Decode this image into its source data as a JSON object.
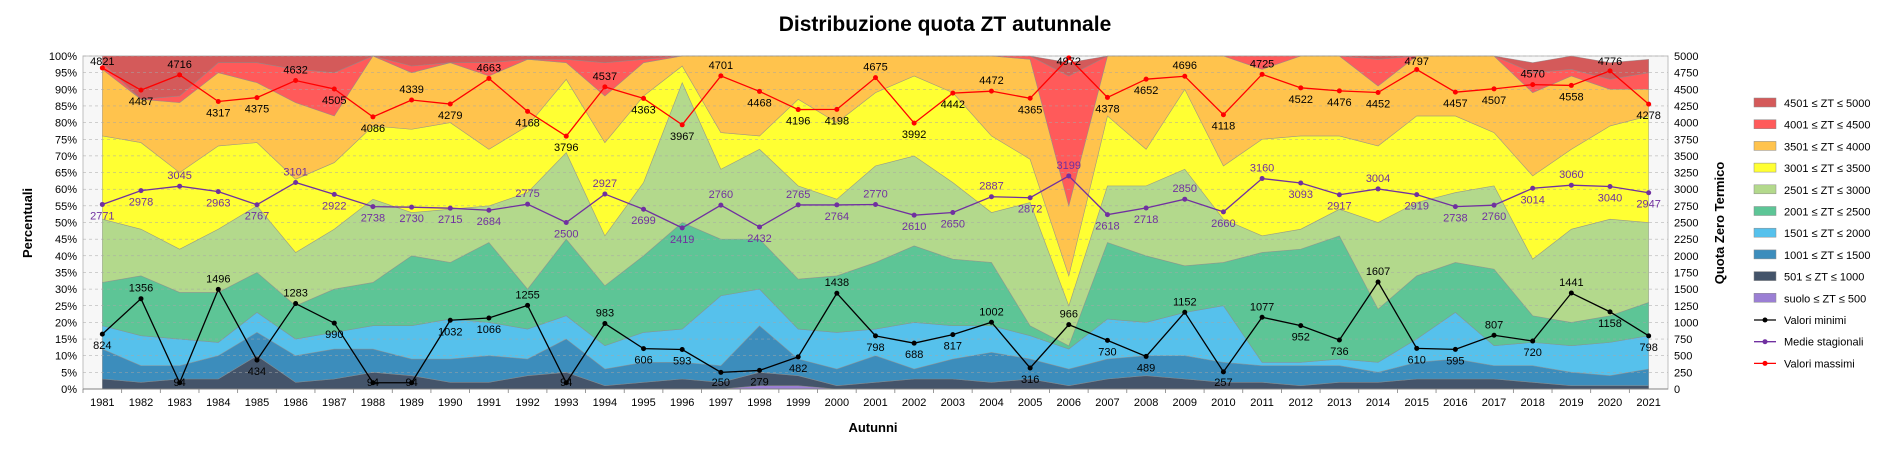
{
  "chart_data": {
    "type": "area",
    "title": "Distribuzione quota ZT autunnale",
    "xlabel": "Autunni",
    "ylabel": "Percentuali",
    "y2label": "Quota Zero Termico",
    "ylim": [
      0,
      100
    ],
    "y2lim": [
      0,
      5000
    ],
    "grid": true,
    "legend_position": "right",
    "y_ticks": [
      "0%",
      "5%",
      "10%",
      "15%",
      "20%",
      "25%",
      "30%",
      "35%",
      "40%",
      "45%",
      "50%",
      "55%",
      "60%",
      "65%",
      "70%",
      "75%",
      "80%",
      "85%",
      "90%",
      "95%",
      "100%"
    ],
    "y2_ticks": [
      "0",
      "250",
      "500",
      "750",
      "1000",
      "1250",
      "1500",
      "1750",
      "2000",
      "2250",
      "2500",
      "2750",
      "3000",
      "3250",
      "3500",
      "3750",
      "4000",
      "4250",
      "4500",
      "4750",
      "5000"
    ],
    "categories": [
      "1981",
      "1982",
      "1983",
      "1984",
      "1985",
      "1986",
      "1987",
      "1988",
      "1989",
      "1990",
      "1991",
      "1992",
      "1993",
      "1994",
      "1995",
      "1996",
      "1997",
      "1998",
      "1999",
      "2000",
      "2001",
      "2002",
      "2003",
      "2004",
      "2005",
      "2006",
      "2007",
      "2008",
      "2009",
      "2010",
      "2011",
      "2012",
      "2013",
      "2014",
      "2015",
      "2016",
      "2017",
      "2018",
      "2019",
      "2020",
      "2021"
    ],
    "stack_series": [
      {
        "name": "suolo ≤ ZT ≤ 500",
        "color": "#9b7fd4",
        "values": [
          0,
          0,
          0,
          0,
          0,
          0,
          0,
          0,
          0,
          0,
          0,
          0,
          0,
          0,
          0,
          0,
          0,
          1,
          1,
          0,
          0,
          0,
          0,
          0,
          0,
          0,
          0,
          0,
          0,
          0,
          0,
          0,
          0,
          0,
          0,
          0,
          0,
          0,
          0,
          0,
          0
        ]
      },
      {
        "name": "501 ≤ ZT ≤ 1000",
        "color": "#44546a",
        "values": [
          3,
          2,
          3,
          3,
          10,
          2,
          3,
          5,
          4,
          2,
          2,
          4,
          5,
          1,
          2,
          3,
          2,
          4,
          3,
          1,
          2,
          3,
          3,
          2,
          3,
          1,
          3,
          4,
          3,
          2,
          2,
          1,
          2,
          2,
          3,
          3,
          3,
          2,
          1,
          1,
          1
        ]
      },
      {
        "name": "1001 ≤ ZT ≤ 1500",
        "color": "#3c8dbc",
        "values": [
          9,
          5,
          4,
          7,
          7,
          8,
          9,
          7,
          5,
          7,
          8,
          5,
          10,
          5,
          6,
          5,
          5,
          14,
          5,
          5,
          8,
          3,
          6,
          9,
          6,
          5,
          6,
          6,
          7,
          6,
          5,
          6,
          5,
          3,
          5,
          6,
          4,
          5,
          4,
          3,
          5
        ]
      },
      {
        "name": "1501 ≤ ZT ≤ 2000",
        "color": "#56c1ec",
        "values": [
          7,
          9,
          8,
          4,
          6,
          5,
          5,
          7,
          10,
          12,
          10,
          9,
          7,
          7,
          9,
          10,
          21,
          11,
          9,
          11,
          8,
          14,
          10,
          8,
          7,
          6,
          12,
          10,
          13,
          17,
          1,
          1,
          2,
          3,
          7,
          14,
          6,
          7,
          8,
          10,
          10
        ]
      },
      {
        "name": "2001 ≤ ZT ≤ 2500",
        "color": "#5dc596",
        "values": [
          13,
          18,
          14,
          15,
          12,
          10,
          13,
          13,
          21,
          17,
          24,
          12,
          23,
          18,
          23,
          32,
          17,
          15,
          15,
          17,
          20,
          23,
          20,
          19,
          3,
          1,
          23,
          20,
          14,
          13,
          33,
          34,
          37,
          16,
          19,
          15,
          23,
          8,
          7,
          8,
          10
        ]
      },
      {
        "name": "2501 ≤ ZT ≤ 3000",
        "color": "#b3d98c",
        "values": [
          19,
          14,
          13,
          19,
          20,
          16,
          18,
          25,
          13,
          16,
          11,
          29,
          26,
          15,
          22,
          42,
          21,
          27,
          28,
          23,
          29,
          27,
          23,
          15,
          37,
          12,
          17,
          21,
          29,
          13,
          5,
          6,
          8,
          26,
          22,
          21,
          25,
          17,
          28,
          29,
          24
        ]
      },
      {
        "name": "3001 ≤ ZT ≤ 3500",
        "color": "#ffff33",
        "values": [
          25,
          26,
          23,
          25,
          19,
          22,
          20,
          22,
          25,
          26,
          17,
          20,
          22,
          28,
          26,
          5,
          11,
          4,
          26,
          23,
          22,
          24,
          27,
          23,
          13,
          9,
          21,
          11,
          24,
          16,
          29,
          28,
          22,
          23,
          26,
          23,
          16,
          25,
          24,
          28,
          32
        ]
      },
      {
        "name": "3501 ≤ ZT ≤ 4000",
        "color": "#ffc34d",
        "values": [
          20,
          13,
          21,
          22,
          18,
          23,
          14,
          22,
          17,
          18,
          22,
          20,
          5,
          14,
          10,
          5,
          24,
          26,
          17,
          22,
          19,
          27,
          21,
          27,
          30,
          21,
          27,
          30,
          27,
          39,
          21,
          26,
          28,
          18,
          18,
          23,
          24,
          25,
          22,
          11,
          8
        ]
      },
      {
        "name": "4001 ≤ ZT ≤ 4500",
        "color": "#ff5a5a",
        "values": [
          2,
          0,
          2,
          3,
          6,
          10,
          13,
          0,
          2,
          0,
          4,
          0,
          1,
          10,
          1,
          1,
          4,
          2,
          2,
          4,
          3,
          5,
          6,
          5,
          9,
          39,
          3,
          3,
          8,
          3,
          8,
          0,
          0,
          8,
          5,
          3,
          7,
          6,
          2,
          3,
          5
        ]
      },
      {
        "name": "4501 ≤ ZT ≤ 5000",
        "color": "#d45a5a",
        "values": [
          2,
          13,
          12,
          2,
          2,
          4,
          5,
          1,
          3,
          4,
          2,
          2,
          1,
          2,
          1,
          1,
          1,
          1,
          2,
          1,
          2,
          1,
          2,
          2,
          2,
          4,
          4,
          1,
          0,
          1,
          3,
          4,
          3,
          3,
          3,
          2,
          4,
          3,
          4,
          5,
          4
        ]
      }
    ],
    "line_series": [
      {
        "name": "Valori minimi",
        "color": "#000000",
        "values": [
          824,
          1356,
          94,
          1496,
          434,
          1283,
          990,
          94,
          94,
          1032,
          1066,
          1255,
          94,
          983,
          606,
          593,
          250,
          279,
          482,
          1438,
          798,
          688,
          817,
          1002,
          316,
          966,
          730,
          489,
          1152,
          257,
          1077,
          952,
          736,
          1607,
          610,
          595,
          807,
          720,
          1441,
          1158,
          798
        ]
      },
      {
        "name": "Medie stagionali",
        "color": "#7030a0",
        "values": [
          2771,
          2978,
          3045,
          2963,
          2767,
          3101,
          2922,
          2738,
          2730,
          2715,
          2684,
          2775,
          2500,
          2927,
          2699,
          2419,
          2760,
          2432,
          2765,
          2764,
          2770,
          2610,
          2650,
          2887,
          2872,
          3199,
          2618,
          2718,
          2850,
          2660,
          3160,
          3093,
          2917,
          3004,
          2919,
          2738,
          2760,
          3014,
          3060,
          3040,
          2947
        ]
      },
      {
        "name": "Valori massimi",
        "color": "#ff0000",
        "values": [
          4821,
          4487,
          4716,
          4317,
          4375,
          4632,
          4505,
          4086,
          4339,
          4279,
          4663,
          4168,
          3796,
          4537,
          4363,
          3967,
          4701,
          4468,
          4196,
          4198,
          4675,
          3992,
          4442,
          4472,
          4365,
          4972,
          4378,
          4652,
          4696,
          4118,
          4725,
          4522,
          4476,
          4452,
          4797,
          4457,
          4507,
          4570,
          4558,
          4776,
          4278
        ]
      }
    ]
  }
}
